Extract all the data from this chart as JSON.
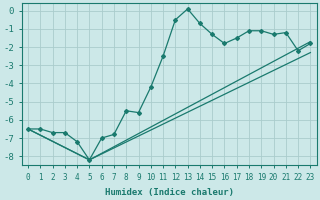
{
  "xlabel": "Humidex (Indice chaleur)",
  "ylabel": "",
  "background_color": "#cce8e8",
  "grid_color": "#aacccc",
  "line_color": "#1a7a6e",
  "xlim": [
    -0.5,
    23.5
  ],
  "ylim": [
    -8.5,
    0.4
  ],
  "xticks": [
    0,
    1,
    2,
    3,
    4,
    5,
    6,
    7,
    8,
    9,
    10,
    11,
    12,
    13,
    14,
    15,
    16,
    17,
    18,
    19,
    20,
    21,
    22,
    23
  ],
  "yticks": [
    0,
    -1,
    -2,
    -3,
    -4,
    -5,
    -6,
    -7,
    -8
  ],
  "line1_x": [
    0,
    1,
    2,
    3,
    4,
    5,
    6,
    7,
    8,
    9,
    10,
    11,
    12,
    13,
    14,
    15,
    16,
    17,
    18,
    19,
    20,
    21,
    22,
    23
  ],
  "line1_y": [
    -6.5,
    -6.5,
    -6.7,
    -6.7,
    -7.2,
    -8.2,
    -7.0,
    -6.8,
    -5.5,
    -5.6,
    -4.2,
    -2.5,
    -0.5,
    0.1,
    -0.7,
    -1.3,
    -1.8,
    -1.5,
    -1.1,
    -1.1,
    -1.3,
    -1.2,
    -2.2,
    -1.8
  ],
  "line2_x": [
    0,
    5,
    23
  ],
  "line2_y": [
    -6.5,
    -8.2,
    -1.7
  ],
  "line3_x": [
    0,
    5,
    23
  ],
  "line3_y": [
    -6.5,
    -8.2,
    -2.3
  ]
}
